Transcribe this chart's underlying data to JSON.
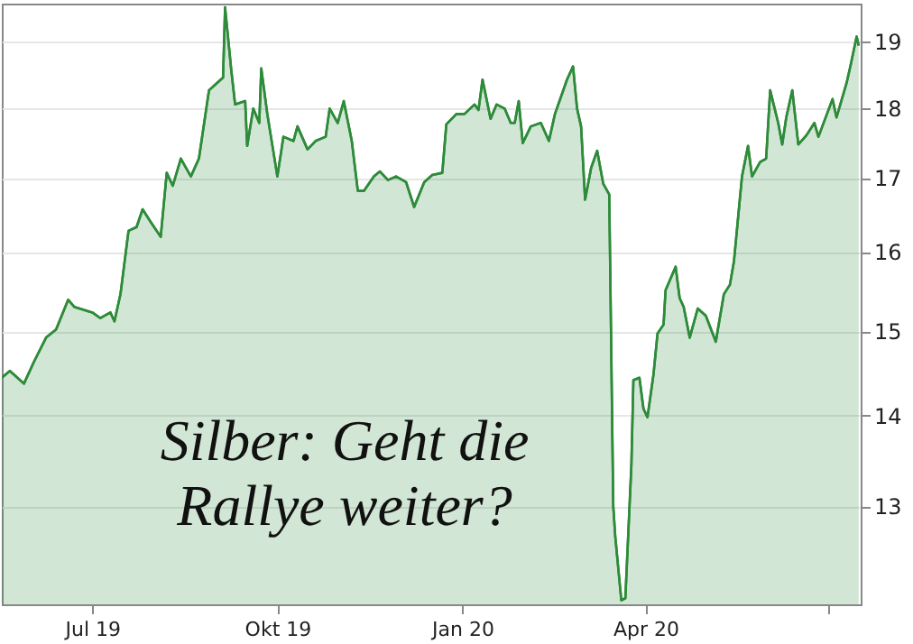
{
  "chart_data": {
    "type": "area",
    "annotations": [
      "Silber: Geht die\nRallye weiter?"
    ],
    "x": [
      "2019-05-17",
      "2019-05-21",
      "2019-05-28",
      "2019-06-02",
      "2019-06-08",
      "2019-06-13",
      "2019-06-19",
      "2019-06-22",
      "2019-07-01",
      "2019-07-05",
      "2019-07-10",
      "2019-07-12",
      "2019-07-15",
      "2019-07-19",
      "2019-07-23",
      "2019-07-26",
      "2019-07-30",
      "2019-08-04",
      "2019-08-07",
      "2019-08-10",
      "2019-08-14",
      "2019-08-19",
      "2019-08-23",
      "2019-08-28",
      "2019-09-01",
      "2019-09-04",
      "2019-09-05",
      "2019-09-08",
      "2019-09-10",
      "2019-09-15",
      "2019-09-16",
      "2019-09-19",
      "2019-09-22",
      "2019-09-23",
      "2019-09-26",
      "2019-10-01",
      "2019-10-04",
      "2019-10-09",
      "2019-10-11",
      "2019-10-16",
      "2019-10-20",
      "2019-10-25",
      "2019-10-27",
      "2019-10-31",
      "2019-11-03",
      "2019-11-07",
      "2019-11-10",
      "2019-11-13",
      "2019-11-18",
      "2019-11-21",
      "2019-11-25",
      "2019-11-29",
      "2019-12-04",
      "2019-12-08",
      "2019-12-13",
      "2019-12-17",
      "2019-12-22",
      "2019-12-24",
      "2019-12-29",
      "2020-01-02",
      "2020-01-07",
      "2020-01-09",
      "2020-01-11",
      "2020-01-15",
      "2020-01-18",
      "2020-01-22",
      "2020-01-25",
      "2020-01-27",
      "2020-01-29",
      "2020-01-31",
      "2020-02-04",
      "2020-02-09",
      "2020-02-13",
      "2020-02-16",
      "2020-02-22",
      "2020-02-25",
      "2020-02-27",
      "2020-02-29",
      "2020-03-02",
      "2020-03-05",
      "2020-03-08",
      "2020-03-11",
      "2020-03-14",
      "2020-03-16",
      "2020-03-17",
      "2020-03-20",
      "2020-03-22",
      "2020-03-25",
      "2020-03-26",
      "2020-03-29",
      "2020-03-31",
      "2020-04-02",
      "2020-04-05",
      "2020-04-07",
      "2020-04-10",
      "2020-04-11",
      "2020-04-16",
      "2020-04-18",
      "2020-04-20",
      "2020-04-23",
      "2020-04-27",
      "2020-05-01",
      "2020-05-06",
      "2020-05-07",
      "2020-05-10",
      "2020-05-13",
      "2020-05-15",
      "2020-05-19",
      "2020-05-22",
      "2020-05-24",
      "2020-05-28",
      "2020-05-31",
      "2020-06-02",
      "2020-06-06",
      "2020-06-08",
      "2020-06-10",
      "2020-06-13",
      "2020-06-16",
      "2020-06-20",
      "2020-06-24",
      "2020-06-26",
      "2020-07-03",
      "2020-07-05",
      "2020-07-10",
      "2020-07-12",
      "2020-07-15",
      "2020-07-16"
    ],
    "series": [
      {
        "color": "#2e8b3a",
        "values": [
          14.44,
          14.52,
          14.37,
          14.63,
          14.92,
          15.02,
          15.39,
          15.3,
          15.23,
          15.16,
          15.23,
          15.12,
          15.46,
          16.28,
          16.33,
          16.57,
          16.4,
          16.2,
          17.07,
          16.89,
          17.27,
          17.02,
          17.27,
          18.26,
          18.37,
          18.45,
          19.54,
          18.59,
          18.05,
          18.1,
          17.45,
          17.99,
          17.78,
          18.59,
          17.91,
          17.02,
          17.58,
          17.52,
          17.73,
          17.4,
          17.52,
          17.58,
          17.99,
          17.78,
          18.1,
          17.52,
          16.82,
          16.82,
          17.02,
          17.09,
          16.97,
          17.02,
          16.94,
          16.6,
          16.94,
          17.04,
          17.07,
          17.76,
          17.91,
          17.91,
          18.05,
          17.97,
          18.42,
          17.84,
          18.05,
          17.99,
          17.78,
          17.78,
          18.1,
          17.49,
          17.73,
          17.78,
          17.52,
          17.91,
          18.42,
          18.62,
          17.99,
          17.73,
          16.7,
          17.14,
          17.38,
          16.92,
          16.77,
          13.0,
          12.68,
          12.04,
          12.06,
          13.44,
          14.41,
          14.44,
          14.08,
          13.98,
          14.48,
          14.97,
          15.08,
          15.51,
          15.81,
          15.41,
          15.3,
          14.92,
          15.28,
          15.19,
          14.87,
          15.02,
          15.46,
          15.58,
          15.88,
          17.02,
          17.45,
          17.02,
          17.22,
          17.27,
          18.26,
          17.78,
          17.47,
          17.86,
          18.26,
          17.47,
          17.6,
          17.78,
          17.58,
          18.13,
          17.86,
          18.37,
          18.64,
          19.08,
          18.94
        ]
      }
    ],
    "xlim": [
      "2019-05-17",
      "2020-07-17"
    ],
    "xticks": [
      {
        "value": "2019-07-01",
        "label": "Jul 19"
      },
      {
        "value": "2019-10-01",
        "label": "Okt 19"
      },
      {
        "value": "2020-01-01",
        "label": "Jan 20"
      },
      {
        "value": "2020-04-01",
        "label": "Apr 20"
      },
      {
        "value": "2020-07-01",
        "label": null
      }
    ],
    "ylim": [
      12.0,
      19.6
    ],
    "yticks": [
      13,
      14,
      15,
      16,
      17,
      18,
      19
    ],
    "log": "y",
    "grid": "y"
  }
}
